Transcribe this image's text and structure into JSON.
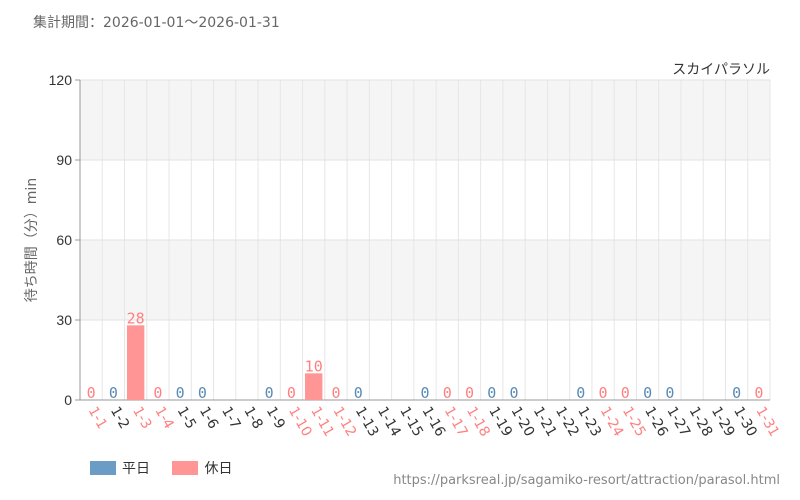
{
  "period": {
    "label": "集計期間：",
    "range": "2026-01-01～2026-01-31"
  },
  "attraction_name": "スカイパラソル",
  "source_url": "https://parksreal.jp/sagamiko-resort/attraction/parasol.html",
  "colors": {
    "weekday": "#6a9cc6",
    "holiday": "#ff9595",
    "holiday_text": "#ff8080",
    "weekday_text": "#5a8ab6"
  },
  "legend": [
    {
      "label": "平日",
      "type": "weekday"
    },
    {
      "label": "休日",
      "type": "holiday"
    }
  ],
  "chart_data": {
    "type": "bar",
    "ylabel": "待ち時間（分）min",
    "ylim": [
      0,
      120
    ],
    "yticks": [
      0,
      30,
      60,
      90,
      120
    ],
    "grid": true,
    "legend_position": "bottom-left",
    "categories": [
      "1-1",
      "1-2",
      "1-3",
      "1-4",
      "1-5",
      "1-6",
      "1-7",
      "1-8",
      "1-9",
      "1-10",
      "1-11",
      "1-12",
      "1-13",
      "1-14",
      "1-15",
      "1-16",
      "1-17",
      "1-18",
      "1-19",
      "1-20",
      "1-21",
      "1-22",
      "1-23",
      "1-24",
      "1-25",
      "1-26",
      "1-27",
      "1-28",
      "1-29",
      "1-30",
      "1-31"
    ],
    "day_type": [
      "holiday",
      "weekday",
      "holiday",
      "holiday",
      "weekday",
      "weekday",
      "weekday",
      "weekday",
      "weekday",
      "holiday",
      "holiday",
      "holiday",
      "weekday",
      "weekday",
      "weekday",
      "weekday",
      "holiday",
      "holiday",
      "weekday",
      "weekday",
      "weekday",
      "weekday",
      "weekday",
      "holiday",
      "holiday",
      "weekday",
      "weekday",
      "weekday",
      "weekday",
      "weekday",
      "holiday"
    ],
    "series": [
      {
        "name": "平日",
        "values": [
          null,
          0,
          null,
          null,
          0,
          0,
          null,
          null,
          0,
          null,
          null,
          null,
          0,
          null,
          null,
          0,
          null,
          null,
          0,
          0,
          null,
          null,
          0,
          null,
          null,
          0,
          0,
          null,
          null,
          0,
          null
        ]
      },
      {
        "name": "休日",
        "values": [
          0,
          null,
          28,
          0,
          null,
          null,
          null,
          null,
          null,
          0,
          10,
          0,
          null,
          null,
          null,
          null,
          0,
          0,
          null,
          null,
          null,
          null,
          null,
          0,
          0,
          null,
          null,
          null,
          null,
          null,
          0
        ]
      }
    ]
  }
}
